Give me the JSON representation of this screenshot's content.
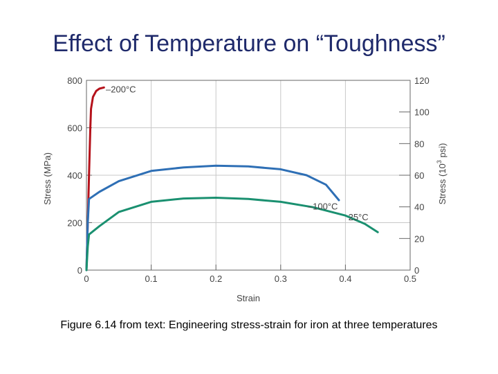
{
  "slide": {
    "title": "Effect of Temperature on “Toughness”",
    "caption": "Figure 6.14 from text:  Engineering stress-strain for iron at three temperatures"
  },
  "chart_data": {
    "type": "line",
    "xlabel": "Strain",
    "ylabel": "Stress (MPa)",
    "y2label": "Stress (10³ psi)",
    "xlim": [
      0,
      0.5
    ],
    "ylim": [
      0,
      800
    ],
    "y2lim": [
      0,
      120
    ],
    "xticks": [
      "0",
      "0.1",
      "0.2",
      "0.3",
      "0.4",
      "0.5"
    ],
    "yticks": [
      "0",
      "200",
      "400",
      "600",
      "800"
    ],
    "y2ticks": [
      "0",
      "20",
      "40",
      "60",
      "80",
      "100",
      "120"
    ],
    "grid": true,
    "series": [
      {
        "name": "–200°C",
        "color": "#b5121b",
        "points": [
          [
            0.0,
            0
          ],
          [
            0.002,
            200
          ],
          [
            0.004,
            400
          ],
          [
            0.006,
            600
          ],
          [
            0.007,
            680
          ],
          [
            0.01,
            730
          ],
          [
            0.015,
            755
          ],
          [
            0.02,
            765
          ],
          [
            0.027,
            770
          ]
        ]
      },
      {
        "name": "–100°C",
        "color": "#2e6fb5",
        "points": [
          [
            0.0,
            0
          ],
          [
            0.002,
            200
          ],
          [
            0.004,
            300
          ],
          [
            0.02,
            330
          ],
          [
            0.05,
            375
          ],
          [
            0.1,
            418
          ],
          [
            0.15,
            433
          ],
          [
            0.2,
            440
          ],
          [
            0.25,
            437
          ],
          [
            0.3,
            425
          ],
          [
            0.34,
            400
          ],
          [
            0.37,
            360
          ],
          [
            0.39,
            295
          ]
        ]
      },
      {
        "name": "25°C",
        "color": "#1a9070",
        "points": [
          [
            0.0,
            0
          ],
          [
            0.002,
            100
          ],
          [
            0.004,
            150
          ],
          [
            0.02,
            185
          ],
          [
            0.05,
            245
          ],
          [
            0.1,
            288
          ],
          [
            0.15,
            302
          ],
          [
            0.2,
            305
          ],
          [
            0.25,
            300
          ],
          [
            0.3,
            288
          ],
          [
            0.35,
            265
          ],
          [
            0.4,
            230
          ],
          [
            0.43,
            195
          ],
          [
            0.45,
            160
          ]
        ]
      }
    ]
  }
}
